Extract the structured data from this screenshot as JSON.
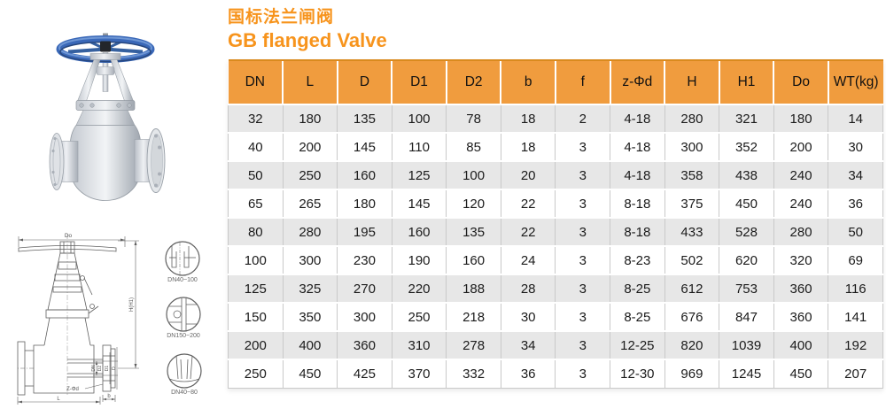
{
  "title": {
    "zh": "国标法兰闸阀",
    "en": "GB flanged Valve"
  },
  "colors": {
    "accent_orange": "#F7941D",
    "table_header_orange": "#F09C3E",
    "row_alt_gray": "#E7E7E7",
    "handwheel_blue": "#3A68B8"
  },
  "table": {
    "columns": [
      "DN",
      "L",
      "D",
      "D1",
      "D2",
      "b",
      "f",
      "z-Φd",
      "H",
      "H1",
      "Do",
      "WT(kg)"
    ],
    "rows": [
      [
        "32",
        "180",
        "135",
        "100",
        "78",
        "18",
        "2",
        "4-18",
        "280",
        "321",
        "180",
        "14"
      ],
      [
        "40",
        "200",
        "145",
        "110",
        "85",
        "18",
        "3",
        "4-18",
        "300",
        "352",
        "200",
        "30"
      ],
      [
        "50",
        "250",
        "160",
        "125",
        "100",
        "20",
        "3",
        "4-18",
        "358",
        "438",
        "240",
        "34"
      ],
      [
        "65",
        "265",
        "180",
        "145",
        "120",
        "22",
        "3",
        "8-18",
        "375",
        "450",
        "240",
        "36"
      ],
      [
        "80",
        "280",
        "195",
        "160",
        "135",
        "22",
        "3",
        "8-18",
        "433",
        "528",
        "280",
        "50"
      ],
      [
        "100",
        "300",
        "230",
        "190",
        "160",
        "24",
        "3",
        "8-23",
        "502",
        "620",
        "320",
        "69"
      ],
      [
        "125",
        "325",
        "270",
        "220",
        "188",
        "28",
        "3",
        "8-25",
        "612",
        "753",
        "360",
        "116"
      ],
      [
        "150",
        "350",
        "300",
        "250",
        "218",
        "30",
        "3",
        "8-25",
        "676",
        "847",
        "360",
        "141"
      ],
      [
        "200",
        "400",
        "360",
        "310",
        "278",
        "34",
        "3",
        "12-25",
        "820",
        "1039",
        "400",
        "192"
      ],
      [
        "250",
        "450",
        "425",
        "370",
        "332",
        "36",
        "3",
        "12-30",
        "969",
        "1245",
        "450",
        "207"
      ]
    ]
  },
  "drawing": {
    "dimension_labels": {
      "do": "Do",
      "h": "H(H1)",
      "dn": "DN",
      "d2": "D2",
      "d1": "D1",
      "d": "D",
      "z_phi_d": "Z-Φd",
      "b": "b",
      "l": "L"
    },
    "detail_labels": [
      "DN40~100",
      "DN150~200",
      "DN40~80"
    ]
  }
}
